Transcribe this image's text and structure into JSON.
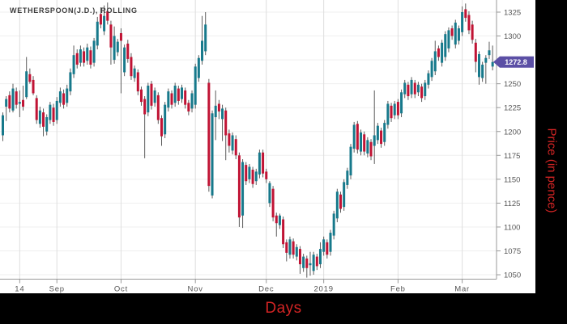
{
  "title": "WETHERSPOON(J.D.), ROLLING",
  "axes": {
    "x_title": "Days",
    "y_title": "Price (in pence)",
    "x_ticks": [
      {
        "label": "14",
        "day": 5
      },
      {
        "label": "Sep",
        "day": 16
      },
      {
        "label": "Oct",
        "day": 35
      },
      {
        "label": "Nov",
        "day": 57
      },
      {
        "label": "Dec",
        "day": 78
      },
      {
        "label": "2019",
        "day": 95
      },
      {
        "label": "Feb",
        "day": 117
      },
      {
        "label": "Mar",
        "day": 136
      }
    ],
    "y_tick_labels": [
      1325,
      1300,
      1250,
      1225,
      1200,
      1175,
      1150,
      1125,
      1100,
      1075,
      1050
    ],
    "grid_values": [
      1325,
      1300,
      1275,
      1250,
      1225,
      1200,
      1175,
      1150,
      1125,
      1100,
      1075,
      1050
    ]
  },
  "last_price": {
    "label": "1272.8",
    "value": 1272.8
  },
  "colors": {
    "up": "#17798b",
    "down": "#c01334",
    "wick": "#5c5c5c",
    "axis": "#999999",
    "grid_h": "#efefef",
    "grid_v": "#dedede",
    "tick_label": "#555555",
    "badge": "#5b4fa5",
    "badge_text": "#ffffff",
    "axis_title": "#d32424",
    "panel": "#000000",
    "bg": "#ffffff"
  },
  "chart_data": {
    "type": "candlestick",
    "title": "WETHERSPOON(J.D.), ROLLING",
    "xlabel": "Days",
    "ylabel": "Price (in pence)",
    "x_tick_labels": [
      "14",
      "Sep",
      "Oct",
      "Nov",
      "Dec",
      "2019",
      "Feb",
      "Mar"
    ],
    "ylim": [
      1040,
      1340
    ],
    "y_ticks": [
      1050,
      1075,
      1100,
      1125,
      1150,
      1175,
      1200,
      1225,
      1250,
      1275,
      1300,
      1325
    ],
    "last_close": 1272.8,
    "ohlc_format": [
      "open",
      "high",
      "low",
      "close"
    ],
    "ohlc": [
      [
        1196,
        1220,
        1190,
        1217
      ],
      [
        1226,
        1237,
        1211,
        1234
      ],
      [
        1238,
        1242,
        1220,
        1224
      ],
      [
        1222,
        1250,
        1220,
        1245
      ],
      [
        1242,
        1246,
        1224,
        1228
      ],
      [
        1229,
        1243,
        1215,
        1231
      ],
      [
        1233,
        1248,
        1222,
        1226
      ],
      [
        1236,
        1278,
        1234,
        1263
      ],
      [
        1260,
        1266,
        1250,
        1252
      ],
      [
        1254,
        1258,
        1238,
        1240
      ],
      [
        1235,
        1238,
        1208,
        1212
      ],
      [
        1208,
        1226,
        1204,
        1222
      ],
      [
        1220,
        1224,
        1195,
        1205
      ],
      [
        1200,
        1218,
        1196,
        1215
      ],
      [
        1212,
        1231,
        1208,
        1228
      ],
      [
        1225,
        1229,
        1206,
        1210
      ],
      [
        1212,
        1236,
        1208,
        1232
      ],
      [
        1230,
        1246,
        1226,
        1242
      ],
      [
        1240,
        1244,
        1224,
        1228
      ],
      [
        1230,
        1249,
        1226,
        1245
      ],
      [
        1242,
        1266,
        1238,
        1262
      ],
      [
        1260,
        1290,
        1256,
        1280
      ],
      [
        1282,
        1286,
        1266,
        1270
      ],
      [
        1272,
        1290,
        1268,
        1286
      ],
      [
        1284,
        1288,
        1268,
        1272
      ],
      [
        1274,
        1292,
        1270,
        1288
      ],
      [
        1285,
        1289,
        1266,
        1270
      ],
      [
        1272,
        1298,
        1268,
        1295
      ],
      [
        1290,
        1320,
        1286,
        1315
      ],
      [
        1323,
        1330,
        1308,
        1312
      ],
      [
        1305,
        1332,
        1301,
        1321
      ],
      [
        1326,
        1335,
        1312,
        1316
      ],
      [
        1312,
        1316,
        1270,
        1288
      ],
      [
        1275,
        1310,
        1271,
        1300
      ],
      [
        1283,
        1297,
        1279,
        1294
      ],
      [
        1303,
        1308,
        1240,
        1295
      ],
      [
        1262,
        1291,
        1258,
        1288
      ],
      [
        1292,
        1296,
        1272,
        1276
      ],
      [
        1278,
        1282,
        1254,
        1258
      ],
      [
        1256,
        1269,
        1252,
        1266
      ],
      [
        1262,
        1265,
        1238,
        1242
      ],
      [
        1244,
        1247,
        1227,
        1231
      ],
      [
        1234,
        1237,
        1172,
        1218
      ],
      [
        1220,
        1251,
        1216,
        1248
      ],
      [
        1250,
        1253,
        1223,
        1227
      ],
      [
        1230,
        1246,
        1226,
        1243
      ],
      [
        1238,
        1241,
        1208,
        1212
      ],
      [
        1214,
        1217,
        1185,
        1195
      ],
      [
        1197,
        1231,
        1193,
        1228
      ],
      [
        1225,
        1245,
        1221,
        1242
      ],
      [
        1240,
        1243,
        1224,
        1228
      ],
      [
        1230,
        1251,
        1226,
        1248
      ],
      [
        1245,
        1248,
        1228,
        1232
      ],
      [
        1234,
        1249,
        1230,
        1246
      ],
      [
        1243,
        1246,
        1224,
        1228
      ],
      [
        1230,
        1233,
        1217,
        1221
      ],
      [
        1224,
        1243,
        1220,
        1240
      ],
      [
        1228,
        1271,
        1224,
        1268
      ],
      [
        1256,
        1280,
        1252,
        1277
      ],
      [
        1274,
        1321,
        1270,
        1295
      ],
      [
        1284,
        1325,
        1280,
        1312
      ],
      [
        1251,
        1255,
        1137,
        1143
      ],
      [
        1133,
        1222,
        1130,
        1219
      ],
      [
        1215,
        1243,
        1191,
        1227
      ],
      [
        1229,
        1233,
        1213,
        1221
      ],
      [
        1213,
        1228,
        1190,
        1224
      ],
      [
        1222,
        1225,
        1170,
        1196
      ],
      [
        1198,
        1202,
        1178,
        1185
      ],
      [
        1180,
        1199,
        1176,
        1196
      ],
      [
        1192,
        1196,
        1171,
        1175
      ],
      [
        1175,
        1178,
        1100,
        1110
      ],
      [
        1112,
        1171,
        1099,
        1168
      ],
      [
        1165,
        1168,
        1144,
        1148
      ],
      [
        1150,
        1166,
        1146,
        1163
      ],
      [
        1160,
        1163,
        1141,
        1145
      ],
      [
        1148,
        1161,
        1144,
        1158
      ],
      [
        1155,
        1181,
        1151,
        1178
      ],
      [
        1178,
        1181,
        1152,
        1156
      ],
      [
        1158,
        1161,
        1146,
        1150
      ],
      [
        1125,
        1148,
        1121,
        1146
      ],
      [
        1140,
        1143,
        1106,
        1110
      ],
      [
        1112,
        1115,
        1090,
        1104
      ],
      [
        1102,
        1114,
        1098,
        1112
      ],
      [
        1108,
        1111,
        1078,
        1082
      ],
      [
        1084,
        1087,
        1064,
        1073
      ],
      [
        1071,
        1090,
        1067,
        1087
      ],
      [
        1085,
        1088,
        1067,
        1071
      ],
      [
        1069,
        1082,
        1065,
        1079
      ],
      [
        1077,
        1080,
        1051,
        1061
      ],
      [
        1057,
        1072,
        1053,
        1069
      ],
      [
        1067,
        1070,
        1047,
        1057
      ],
      [
        1060,
        1074,
        1049,
        1062
      ],
      [
        1054,
        1074,
        1050,
        1071
      ],
      [
        1069,
        1072,
        1055,
        1059
      ],
      [
        1061,
        1084,
        1057,
        1077
      ],
      [
        1074,
        1090,
        1070,
        1087
      ],
      [
        1084,
        1087,
        1067,
        1071
      ],
      [
        1074,
        1097,
        1070,
        1094
      ],
      [
        1091,
        1117,
        1087,
        1114
      ],
      [
        1109,
        1140,
        1105,
        1137
      ],
      [
        1134,
        1137,
        1115,
        1119
      ],
      [
        1121,
        1150,
        1117,
        1147
      ],
      [
        1144,
        1162,
        1140,
        1159
      ],
      [
        1154,
        1187,
        1150,
        1184
      ],
      [
        1182,
        1210,
        1178,
        1207
      ],
      [
        1208,
        1211,
        1177,
        1181
      ],
      [
        1179,
        1202,
        1175,
        1199
      ],
      [
        1197,
        1200,
        1175,
        1179
      ],
      [
        1177,
        1194,
        1173,
        1191
      ],
      [
        1189,
        1192,
        1170,
        1174
      ],
      [
        1185,
        1243,
        1166,
        1196
      ],
      [
        1191,
        1209,
        1187,
        1206
      ],
      [
        1201,
        1204,
        1183,
        1187
      ],
      [
        1189,
        1212,
        1185,
        1209
      ],
      [
        1207,
        1232,
        1203,
        1229
      ],
      [
        1227,
        1230,
        1210,
        1214
      ],
      [
        1217,
        1232,
        1213,
        1229
      ],
      [
        1231,
        1234,
        1213,
        1217
      ],
      [
        1219,
        1244,
        1215,
        1241
      ],
      [
        1239,
        1254,
        1235,
        1251
      ],
      [
        1249,
        1252,
        1233,
        1237
      ],
      [
        1239,
        1257,
        1235,
        1254
      ],
      [
        1251,
        1254,
        1235,
        1239
      ],
      [
        1241,
        1252,
        1237,
        1249
      ],
      [
        1247,
        1250,
        1231,
        1235
      ],
      [
        1237,
        1254,
        1233,
        1251
      ],
      [
        1249,
        1264,
        1245,
        1261
      ],
      [
        1257,
        1277,
        1253,
        1274
      ],
      [
        1263,
        1295,
        1259,
        1284
      ],
      [
        1287,
        1290,
        1274,
        1278
      ],
      [
        1272,
        1296,
        1268,
        1293
      ],
      [
        1278,
        1305,
        1274,
        1302
      ],
      [
        1287,
        1309,
        1283,
        1306
      ],
      [
        1308,
        1311,
        1296,
        1300
      ],
      [
        1291,
        1317,
        1287,
        1314
      ],
      [
        1295,
        1311,
        1291,
        1308
      ],
      [
        1304,
        1331,
        1300,
        1325
      ],
      [
        1328,
        1334,
        1315,
        1319
      ],
      [
        1322,
        1326,
        1302,
        1306
      ],
      [
        1312,
        1316,
        1292,
        1296
      ],
      [
        1293,
        1297,
        1262,
        1273
      ],
      [
        1257,
        1284,
        1249,
        1281
      ],
      [
        1256,
        1273,
        1252,
        1270
      ],
      [
        1272,
        1280,
        1250,
        1277
      ],
      [
        1280,
        1294,
        1276,
        1285
      ],
      [
        1268,
        1290,
        1264,
        1272.8
      ]
    ]
  }
}
